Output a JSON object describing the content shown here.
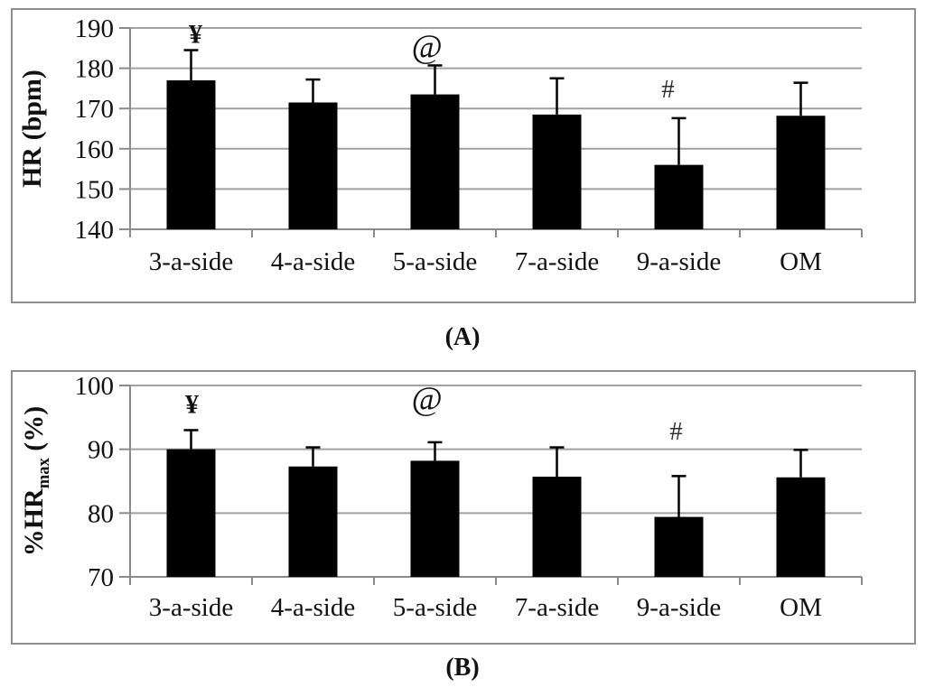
{
  "figure": {
    "background": "#ffffff",
    "colors": {
      "grid": "#a0a0a0",
      "axis": "#8a8a8a",
      "border": "#8f8f8f",
      "bar": "#000000",
      "error": "#000000",
      "text": "#111111",
      "hash_symbol": "#2e2e2e"
    },
    "captions": {
      "a": "(A)",
      "b": "(B)"
    }
  },
  "chart_data": [
    {
      "id": "A",
      "type": "bar",
      "title": "",
      "xlabel": "",
      "ylabel": "HR (bpm)",
      "ylabel_rich": [
        {
          "t": "HR (bpm)"
        }
      ],
      "categories": [
        "3-a-side",
        "4-a-side",
        "5-a-side",
        "7-a-side",
        "9-a-side",
        "OM"
      ],
      "values": [
        177.0,
        171.5,
        173.5,
        168.5,
        156.0,
        168.2
      ],
      "errors_plus": [
        7.5,
        5.7,
        7.2,
        9.0,
        11.6,
        8.2
      ],
      "ylim": [
        140,
        190
      ],
      "yticks": [
        140,
        150,
        160,
        170,
        180,
        190
      ],
      "grid": true,
      "legend": false,
      "annotations": [
        {
          "text": "¥",
          "cat_index": 0,
          "y": 188.4,
          "dx": 5,
          "style": "bold"
        },
        {
          "text": "@",
          "cat_index": 2,
          "y": 185.2,
          "dx": -9,
          "style": "italic-large"
        },
        {
          "text": "#",
          "cat_index": 4,
          "y": 174.8,
          "dx": -12,
          "style": "plain"
        }
      ]
    },
    {
      "id": "B",
      "type": "bar",
      "title": "",
      "xlabel": "",
      "ylabel": "%HRmax (%)",
      "ylabel_rich": [
        {
          "t": "%HR"
        },
        {
          "t": "max",
          "sub": true
        },
        {
          "t": " (%)"
        }
      ],
      "categories": [
        "3-a-side",
        "4-a-side",
        "5-a-side",
        "7-a-side",
        "9-a-side",
        "OM"
      ],
      "values": [
        90.0,
        87.3,
        88.2,
        85.7,
        79.4,
        85.6
      ],
      "errors_plus": [
        3.0,
        3.0,
        2.9,
        4.6,
        6.4,
        4.3
      ],
      "ylim": [
        70,
        100
      ],
      "yticks": [
        70,
        80,
        90,
        100
      ],
      "grid": true,
      "legend": false,
      "annotations": [
        {
          "text": "¥",
          "cat_index": 0,
          "y": 97.0,
          "dx": 1,
          "style": "bold"
        },
        {
          "text": "@",
          "cat_index": 2,
          "y": 97.8,
          "dx": -9,
          "style": "italic-large"
        },
        {
          "text": "#",
          "cat_index": 4,
          "y": 92.8,
          "dx": -3,
          "style": "plain"
        }
      ]
    }
  ]
}
